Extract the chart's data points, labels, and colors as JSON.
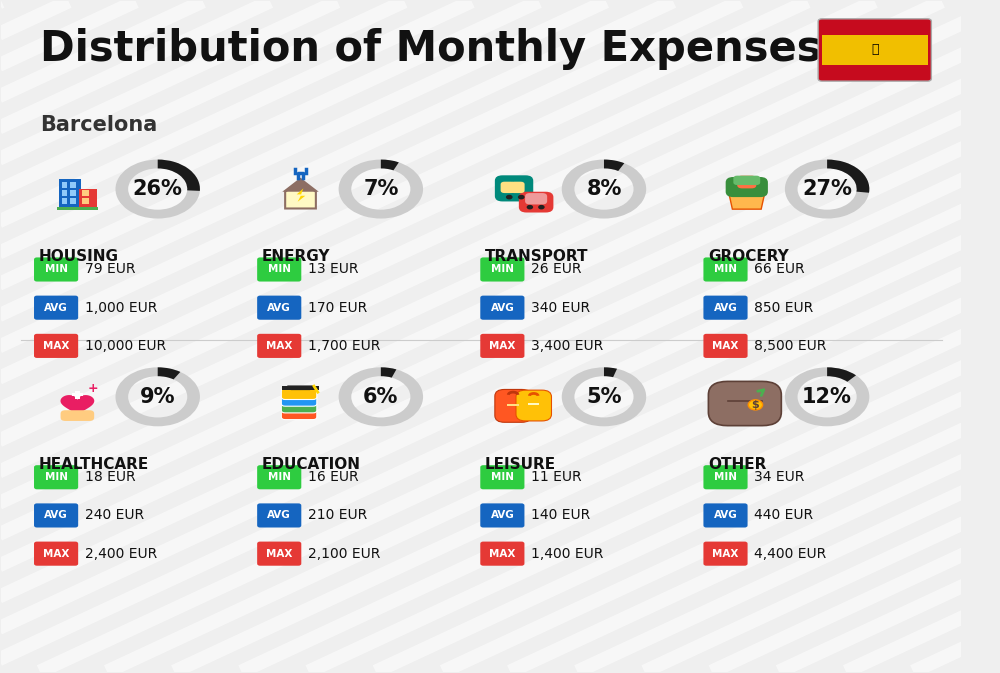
{
  "title": "Distribution of Monthly Expenses",
  "subtitle": "Barcelona",
  "background_color": "#efefef",
  "categories": [
    {
      "name": "HOUSING",
      "percent": 26,
      "min_val": "79 EUR",
      "avg_val": "1,000 EUR",
      "max_val": "10,000 EUR",
      "row": 0,
      "col": 0
    },
    {
      "name": "ENERGY",
      "percent": 7,
      "min_val": "13 EUR",
      "avg_val": "170 EUR",
      "max_val": "1,700 EUR",
      "row": 0,
      "col": 1
    },
    {
      "name": "TRANSPORT",
      "percent": 8,
      "min_val": "26 EUR",
      "avg_val": "340 EUR",
      "max_val": "3,400 EUR",
      "row": 0,
      "col": 2
    },
    {
      "name": "GROCERY",
      "percent": 27,
      "min_val": "66 EUR",
      "avg_val": "850 EUR",
      "max_val": "8,500 EUR",
      "row": 0,
      "col": 3
    },
    {
      "name": "HEALTHCARE",
      "percent": 9,
      "min_val": "18 EUR",
      "avg_val": "240 EUR",
      "max_val": "2,400 EUR",
      "row": 1,
      "col": 0
    },
    {
      "name": "EDUCATION",
      "percent": 6,
      "min_val": "16 EUR",
      "avg_val": "210 EUR",
      "max_val": "2,100 EUR",
      "row": 1,
      "col": 1
    },
    {
      "name": "LEISURE",
      "percent": 5,
      "min_val": "11 EUR",
      "avg_val": "140 EUR",
      "max_val": "1,400 EUR",
      "row": 1,
      "col": 2
    },
    {
      "name": "OTHER",
      "percent": 12,
      "min_val": "34 EUR",
      "avg_val": "440 EUR",
      "max_val": "4,400 EUR",
      "row": 1,
      "col": 3
    }
  ],
  "min_color": "#2ecc40",
  "avg_color": "#1565C0",
  "max_color": "#e53935",
  "value_text_color": "#111111",
  "category_name_color": "#111111",
  "donut_filled_color": "#1a1a1a",
  "donut_empty_color": "#cccccc",
  "title_fontsize": 30,
  "subtitle_fontsize": 15,
  "category_fontsize": 11,
  "value_fontsize": 10,
  "percent_fontsize": 15
}
